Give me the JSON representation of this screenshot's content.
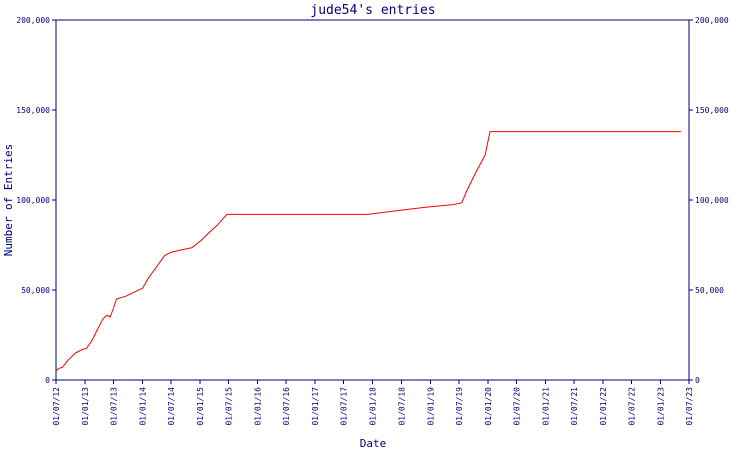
{
  "chart_data": {
    "type": "line",
    "title": "jude54's entries",
    "xlabel": "Date",
    "ylabel": "Number of Entries",
    "y_ticks": [
      0,
      50000,
      100000,
      150000,
      200000
    ],
    "y_tick_labels": [
      "0",
      "50,000",
      "100,000",
      "150,000",
      "200,000"
    ],
    "ylim": [
      0,
      200000
    ],
    "x_tick_labels": [
      "01/07/12",
      "01/01/13",
      "01/07/13",
      "01/01/14",
      "01/07/14",
      "01/01/15",
      "01/07/15",
      "01/01/16",
      "01/07/16",
      "01/01/17",
      "01/07/17",
      "01/01/18",
      "01/07/18",
      "01/01/19",
      "01/07/19",
      "01/01/20",
      "01/07/20",
      "01/01/21",
      "01/07/21",
      "01/01/22",
      "01/07/22",
      "01/01/23",
      "01/07/23"
    ],
    "xlim": [
      "2012-07-01",
      "2023-07-01"
    ],
    "grid": false,
    "colors": {
      "frame": "#000080",
      "series": "#ff0000",
      "text": "#000080"
    },
    "series": [
      {
        "x": [
          "2012-07-01",
          "2012-07-20",
          "2012-08-10",
          "2012-09-15",
          "2012-11-01",
          "2012-12-15",
          "2013-01-10",
          "2013-02-15",
          "2013-03-20",
          "2013-04-25",
          "2013-05-20",
          "2013-06-10",
          "2013-07-01",
          "2013-07-20",
          "2013-09-15",
          "2013-11-15",
          "2014-01-01",
          "2014-02-10",
          "2014-04-01",
          "2014-05-20",
          "2014-07-01",
          "2014-08-20",
          "2014-11-10",
          "2015-01-01",
          "2015-03-01",
          "2015-04-20",
          "2015-06-20",
          "2017-12-01",
          "2018-06-01",
          "2018-12-01",
          "2019-06-01",
          "2019-07-20",
          "2019-08-20",
          "2019-10-15",
          "2019-12-15",
          "2020-01-15",
          "2023-05-10"
        ],
        "y": [
          5000,
          6500,
          7000,
          11000,
          15000,
          17000,
          17500,
          22000,
          28000,
          34000,
          36000,
          35000,
          40000,
          45000,
          46500,
          49000,
          51000,
          57000,
          63000,
          69000,
          71000,
          72000,
          73500,
          77000,
          82000,
          86000,
          92000,
          92000,
          94000,
          96000,
          97500,
          98500,
          105000,
          115000,
          125000,
          138000,
          138000
        ]
      }
    ]
  }
}
